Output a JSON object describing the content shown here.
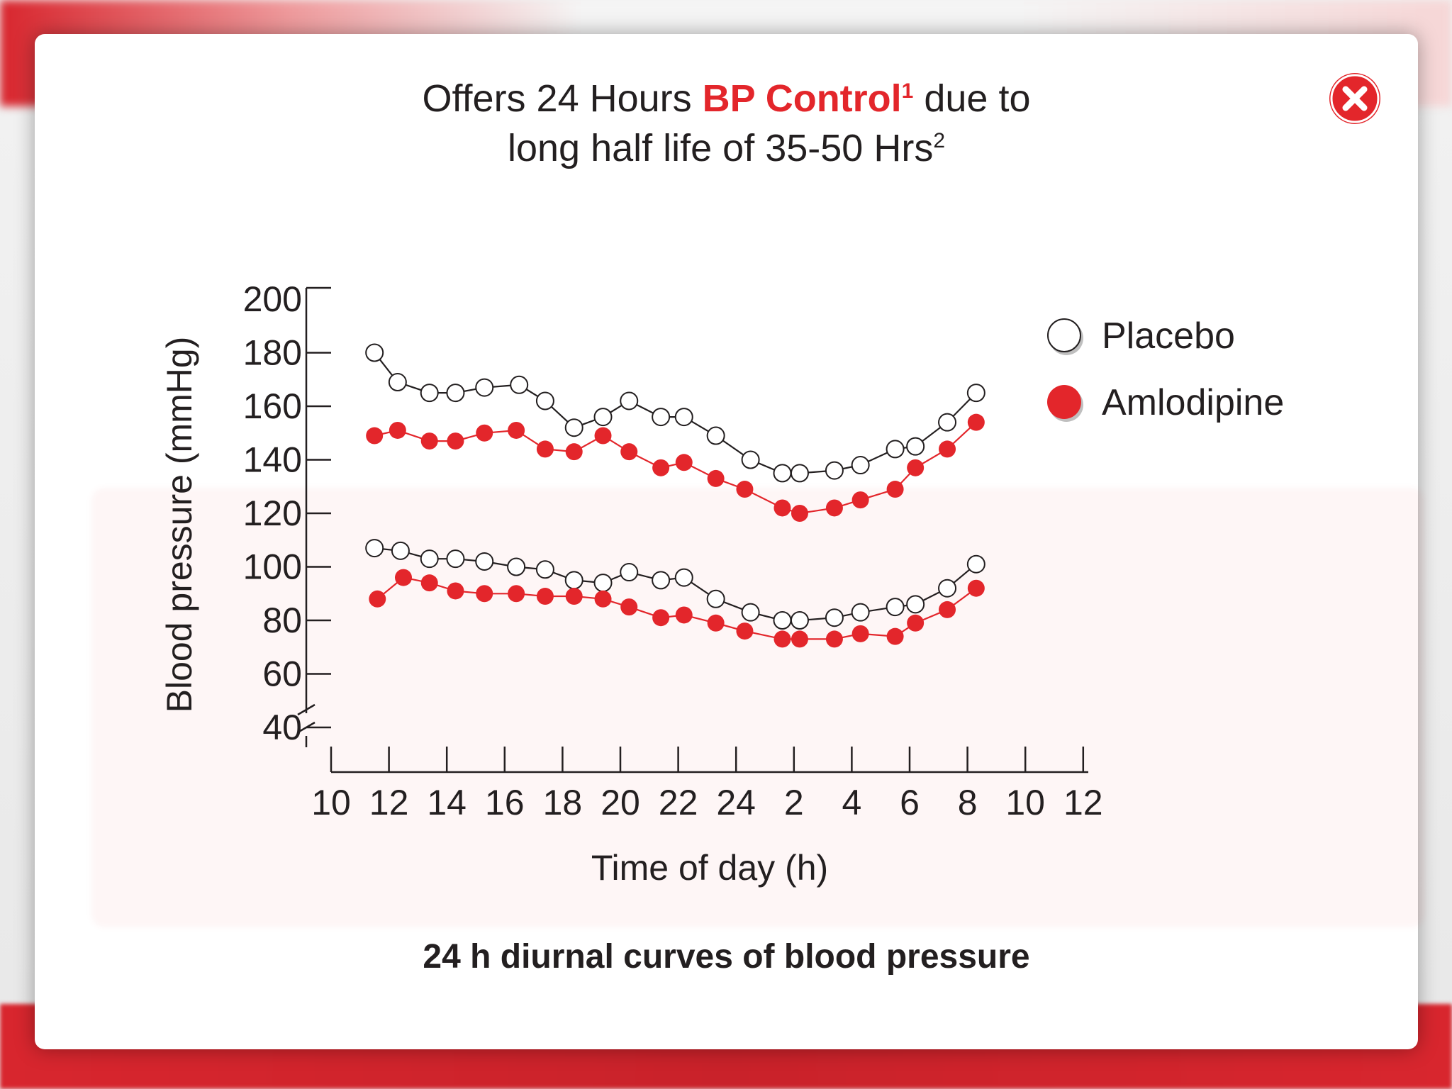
{
  "title": {
    "line1_pre": "Offers 24 Hours ",
    "line1_highlight": "BP Control",
    "line1_sup": "1",
    "line1_post": " due to",
    "line2": "long half life of 35-50 Hrs",
    "line2_sup": "2"
  },
  "close_icon": "close-icon",
  "colors": {
    "accent": "#e3262b",
    "text": "#231f20"
  },
  "chart_data": {
    "type": "line",
    "title": "24 h diurnal curves of blood pressure",
    "xlabel": "Time of day (h)",
    "ylabel": "Blood pressure (mmHg)",
    "x_ticks": [
      "10",
      "12",
      "14",
      "16",
      "18",
      "20",
      "22",
      "24",
      "2",
      "4",
      "6",
      "8",
      "10",
      "12"
    ],
    "y_ticks": [
      200,
      180,
      160,
      140,
      120,
      100,
      80,
      60,
      40
    ],
    "ylim": [
      40,
      200
    ],
    "y_axis_break": "between 40 and 60",
    "legend": {
      "position": "top-right",
      "entries": [
        "Placebo",
        "Amlodipine"
      ]
    },
    "series": [
      {
        "name": "Placebo",
        "marker": "open-circle",
        "color": "#ffffff",
        "line_color": "#231f20",
        "systolic": {
          "x": [
            11.5,
            12.3,
            13.4,
            14.3,
            15.3,
            16.5,
            17.4,
            18.4,
            19.4,
            20.3,
            21.4,
            22.2,
            23.3,
            24.5,
            25.6,
            26.2,
            27.4,
            28.3,
            29.5,
            30.2,
            31.3,
            32.3
          ],
          "y": [
            180,
            169,
            165,
            165,
            167,
            168,
            162,
            152,
            156,
            162,
            156,
            156,
            149,
            140,
            135,
            135,
            136,
            138,
            144,
            145,
            154,
            165
          ]
        },
        "diastolic": {
          "x": [
            11.5,
            12.4,
            13.4,
            14.3,
            15.3,
            16.4,
            17.4,
            18.4,
            19.4,
            20.3,
            21.4,
            22.2,
            23.3,
            24.5,
            25.6,
            26.2,
            27.4,
            28.3,
            29.5,
            30.2,
            31.3,
            32.3
          ],
          "y": [
            107,
            106,
            103,
            103,
            102,
            100,
            99,
            95,
            94,
            98,
            95,
            96,
            88,
            83,
            80,
            80,
            81,
            83,
            85,
            86,
            92,
            101
          ]
        }
      },
      {
        "name": "Amlodipine",
        "marker": "filled-circle",
        "color": "#e3262b",
        "line_color": "#e3262b",
        "systolic": {
          "x": [
            11.5,
            12.3,
            13.4,
            14.3,
            15.3,
            16.4,
            17.4,
            18.4,
            19.4,
            20.3,
            21.4,
            22.2,
            23.3,
            24.3,
            25.6,
            26.2,
            27.4,
            28.3,
            29.5,
            30.2,
            31.3,
            32.3
          ],
          "y": [
            149,
            151,
            147,
            147,
            150,
            151,
            144,
            143,
            149,
            143,
            137,
            139,
            133,
            129,
            122,
            120,
            122,
            125,
            129,
            137,
            144,
            154
          ]
        },
        "diastolic": {
          "x": [
            11.6,
            12.5,
            13.4,
            14.3,
            15.3,
            16.4,
            17.4,
            18.4,
            19.4,
            20.3,
            21.4,
            22.2,
            23.3,
            24.3,
            25.6,
            26.2,
            27.4,
            28.3,
            29.5,
            30.2,
            31.3,
            32.3
          ],
          "y": [
            88,
            96,
            94,
            91,
            90,
            90,
            89,
            89,
            88,
            85,
            81,
            82,
            79,
            76,
            73,
            73,
            73,
            75,
            74,
            79,
            84,
            92
          ]
        }
      }
    ]
  }
}
